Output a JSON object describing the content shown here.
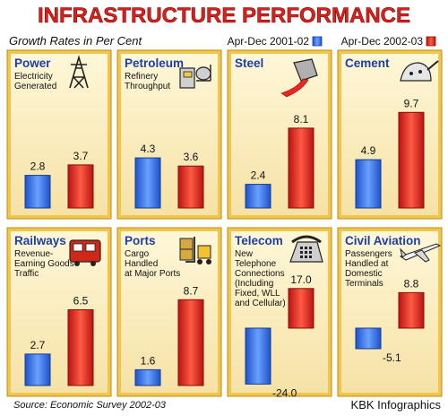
{
  "title": "INFRASTRUCTURE PERFORMANCE",
  "subtitle": "Growth Rates in Per Cent",
  "legend": {
    "series1": "Apr-Dec 2001-02",
    "series2": "Apr-Dec 2002-03"
  },
  "source": "Source: Economic Survey 2002-03",
  "credit": "KBK Infographics",
  "colors": {
    "series1": "#3a78e8",
    "series2": "#e8281e",
    "title": "#d8201c",
    "panel": "#fbeec2",
    "frame": "#f2c64a",
    "label": "#1a3fa8"
  },
  "chart_data": [
    {
      "type": "bar",
      "title": "Power",
      "desc": [
        "Electricity",
        "Generated"
      ],
      "icon": "power-tower-icon",
      "series_names": [
        "Apr-Dec 2001-02",
        "Apr-Dec 2002-03"
      ],
      "values": [
        2.8,
        3.7
      ],
      "value_labels": [
        "2.8",
        "3.7"
      ]
    },
    {
      "type": "bar",
      "title": "Petroleum",
      "desc": [
        "Refinery",
        "Throughput"
      ],
      "icon": "refinery-icon",
      "series_names": [
        "Apr-Dec 2001-02",
        "Apr-Dec 2002-03"
      ],
      "values": [
        4.3,
        3.6
      ],
      "value_labels": [
        "4.3",
        "3.6"
      ]
    },
    {
      "type": "bar",
      "title": "Steel",
      "desc": [],
      "icon": "steel-ladle-icon",
      "series_names": [
        "Apr-Dec 2001-02",
        "Apr-Dec 2002-03"
      ],
      "values": [
        2.4,
        8.1
      ],
      "value_labels": [
        "2.4",
        "8.1"
      ]
    },
    {
      "type": "bar",
      "title": "Cement",
      "desc": [],
      "icon": "cement-bag-icon",
      "series_names": [
        "Apr-Dec 2001-02",
        "Apr-Dec 2002-03"
      ],
      "values": [
        4.9,
        9.7
      ],
      "value_labels": [
        "4.9",
        "9.7"
      ]
    },
    {
      "type": "bar",
      "title": "Railways",
      "desc": [
        "Revenue-",
        "Earning Goods",
        "Traffic"
      ],
      "icon": "train-icon",
      "series_names": [
        "Apr-Dec 2001-02",
        "Apr-Dec 2002-03"
      ],
      "values": [
        2.7,
        6.5
      ],
      "value_labels": [
        "2.7",
        "6.5"
      ]
    },
    {
      "type": "bar",
      "title": "Ports",
      "desc": [
        "Cargo",
        "Handled",
        "at Major Ports"
      ],
      "icon": "forklift-icon",
      "series_names": [
        "Apr-Dec 2001-02",
        "Apr-Dec 2002-03"
      ],
      "values": [
        1.6,
        8.7
      ],
      "value_labels": [
        "1.6",
        "8.7"
      ]
    },
    {
      "type": "bar",
      "title": "Telecom",
      "desc": [
        "New",
        "Telephone",
        "Connections",
        "(Including",
        "Fixed, WLL",
        "and Cellular)"
      ],
      "icon": "telephone-icon",
      "series_names": [
        "Apr-Dec 2001-02",
        "Apr-Dec 2002-03"
      ],
      "values": [
        -24.0,
        17.0
      ],
      "value_labels": [
        "-24.0",
        "17.0"
      ]
    },
    {
      "type": "bar",
      "title": "Civil Aviation",
      "desc": [
        "Passengers",
        "Handled at",
        "Domestic",
        "Terminals"
      ],
      "icon": "airplane-icon",
      "series_names": [
        "Apr-Dec 2001-02",
        "Apr-Dec 2002-03"
      ],
      "values": [
        -5.1,
        8.8
      ],
      "value_labels": [
        "-5.1",
        "8.8"
      ]
    }
  ]
}
